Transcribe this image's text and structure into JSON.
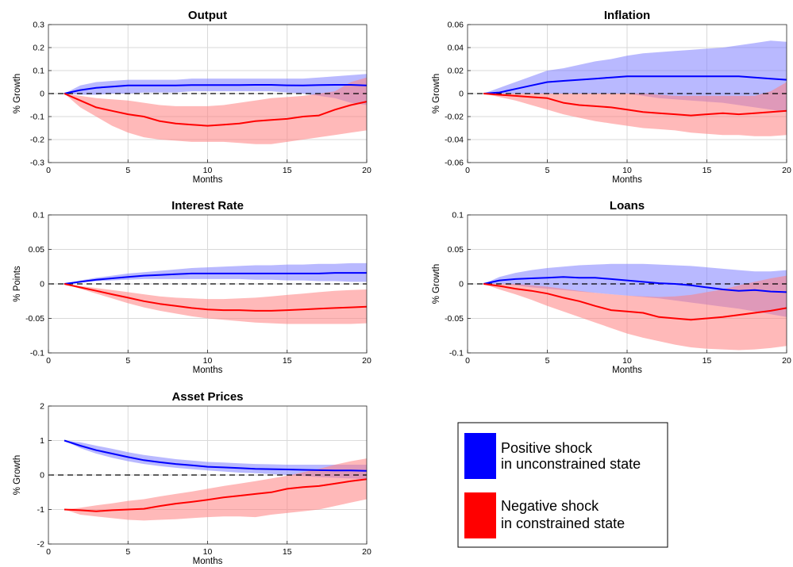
{
  "colors": {
    "positive_line": "#0000ff",
    "positive_band": "#8080ff",
    "negative_line": "#ff0000",
    "negative_band": "#ff8080",
    "zero_line": "#000000",
    "grid": "#d9d9d9"
  },
  "legend": {
    "placement": "bottom-right",
    "items": [
      {
        "line1": "Positive shock",
        "line2": "in unconstrained state",
        "color": "#0000ff"
      },
      {
        "line1": "Negative shock",
        "line2": "in constrained state",
        "color": "#ff0000"
      }
    ]
  },
  "chart_data": [
    {
      "type": "line",
      "title": "Output",
      "xlabel": "Months",
      "ylabel": "% Growth",
      "xlim": [
        0,
        20
      ],
      "ylim": [
        -0.3,
        0.3
      ],
      "xticks": [
        0,
        5,
        10,
        15,
        20
      ],
      "yticks": [
        -0.3,
        -0.2,
        -0.1,
        0,
        0.1,
        0.2,
        0.3
      ],
      "ytick_labels": [
        "-0.3",
        "-0.2",
        "-0.1",
        "0",
        "0.1",
        "0.2",
        "0.3"
      ],
      "grid": true,
      "x": [
        1,
        2,
        3,
        4,
        5,
        6,
        7,
        8,
        9,
        10,
        11,
        12,
        13,
        14,
        15,
        16,
        17,
        18,
        19,
        20
      ],
      "series": [
        {
          "kind": "positive",
          "values": [
            0,
            0.015,
            0.025,
            0.03,
            0.035,
            0.035,
            0.035,
            0.035,
            0.037,
            0.037,
            0.037,
            0.037,
            0.038,
            0.038,
            0.036,
            0.035,
            0.037,
            0.038,
            0.038,
            0.035
          ],
          "lower": [
            0,
            -0.005,
            -0.005,
            0,
            0,
            0.005,
            0.005,
            0.005,
            0.01,
            0.01,
            0.01,
            0.01,
            0.01,
            0.01,
            0.005,
            0.0,
            -0.01,
            -0.02,
            -0.04,
            -0.05
          ],
          "upper": [
            0,
            0.035,
            0.05,
            0.055,
            0.06,
            0.06,
            0.06,
            0.06,
            0.065,
            0.065,
            0.065,
            0.065,
            0.065,
            0.065,
            0.065,
            0.065,
            0.07,
            0.075,
            0.08,
            0.085
          ]
        },
        {
          "kind": "negative",
          "values": [
            0,
            -0.03,
            -0.06,
            -0.075,
            -0.09,
            -0.1,
            -0.12,
            -0.13,
            -0.135,
            -0.14,
            -0.135,
            -0.13,
            -0.12,
            -0.115,
            -0.11,
            -0.1,
            -0.095,
            -0.07,
            -0.05,
            -0.035
          ],
          "lower": [
            0,
            -0.06,
            -0.1,
            -0.14,
            -0.17,
            -0.19,
            -0.2,
            -0.205,
            -0.21,
            -0.21,
            -0.21,
            -0.215,
            -0.22,
            -0.22,
            -0.21,
            -0.2,
            -0.19,
            -0.18,
            -0.17,
            -0.16
          ],
          "upper": [
            0,
            -0.01,
            -0.02,
            -0.025,
            -0.03,
            -0.04,
            -0.05,
            -0.055,
            -0.055,
            -0.055,
            -0.05,
            -0.04,
            -0.03,
            -0.02,
            -0.015,
            -0.01,
            0.0,
            0.01,
            0.05,
            0.07
          ]
        }
      ]
    },
    {
      "type": "line",
      "title": "Inflation",
      "xlabel": "Months",
      "ylabel": "% Growth",
      "xlim": [
        0,
        20
      ],
      "ylim": [
        -0.06,
        0.06
      ],
      "xticks": [
        0,
        5,
        10,
        15,
        20
      ],
      "yticks": [
        -0.06,
        -0.04,
        -0.02,
        0,
        0.02,
        0.04,
        0.06
      ],
      "ytick_labels": [
        "-0.06",
        "-0.04",
        "-0.02",
        "0",
        "0.02",
        "0.04",
        "0.06"
      ],
      "grid": true,
      "x": [
        1,
        2,
        3,
        4,
        5,
        6,
        7,
        8,
        9,
        10,
        11,
        12,
        13,
        14,
        15,
        16,
        17,
        18,
        19,
        20
      ],
      "series": [
        {
          "kind": "positive",
          "values": [
            0,
            0.001,
            0.004,
            0.007,
            0.01,
            0.011,
            0.012,
            0.013,
            0.014,
            0.015,
            0.015,
            0.015,
            0.015,
            0.015,
            0.015,
            0.015,
            0.015,
            0.014,
            0.013,
            0.012
          ],
          "lower": [
            0,
            0,
            0,
            0,
            0,
            0,
            0,
            0,
            0,
            0,
            -0.002,
            -0.004,
            -0.005,
            -0.006,
            -0.007,
            -0.008,
            -0.01,
            -0.012,
            -0.014,
            -0.016
          ],
          "upper": [
            0,
            0.005,
            0.01,
            0.015,
            0.02,
            0.022,
            0.025,
            0.028,
            0.03,
            0.033,
            0.035,
            0.036,
            0.037,
            0.038,
            0.039,
            0.04,
            0.042,
            0.044,
            0.046,
            0.045
          ]
        },
        {
          "kind": "negative",
          "values": [
            0,
            -0.001,
            -0.002,
            -0.003,
            -0.004,
            -0.008,
            -0.01,
            -0.011,
            -0.012,
            -0.014,
            -0.016,
            -0.017,
            -0.018,
            -0.019,
            -0.018,
            -0.017,
            -0.018,
            -0.017,
            -0.016,
            -0.015
          ],
          "lower": [
            0,
            -0.003,
            -0.006,
            -0.01,
            -0.014,
            -0.018,
            -0.021,
            -0.024,
            -0.026,
            -0.028,
            -0.03,
            -0.031,
            -0.032,
            -0.034,
            -0.035,
            -0.036,
            -0.036,
            -0.037,
            -0.037,
            -0.036
          ],
          "upper": [
            0,
            0,
            0,
            0,
            0,
            0,
            0,
            0,
            0,
            0,
            0,
            -0.001,
            -0.002,
            -0.002,
            -0.002,
            -0.002,
            -0.002,
            -0.002,
            0.002,
            0.01
          ]
        }
      ]
    },
    {
      "type": "line",
      "title": "Interest Rate",
      "xlabel": "Months",
      "ylabel": "% Points",
      "xlim": [
        0,
        20
      ],
      "ylim": [
        -0.1,
        0.1
      ],
      "xticks": [
        0,
        5,
        10,
        15,
        20
      ],
      "yticks": [
        -0.1,
        -0.05,
        0,
        0.05,
        0.1
      ],
      "ytick_labels": [
        "-0.1",
        "-0.05",
        "0",
        "0.05",
        "0.1"
      ],
      "grid": true,
      "x": [
        1,
        2,
        3,
        4,
        5,
        6,
        7,
        8,
        9,
        10,
        11,
        12,
        13,
        14,
        15,
        16,
        17,
        18,
        19,
        20
      ],
      "series": [
        {
          "kind": "positive",
          "values": [
            0,
            0.003,
            0.006,
            0.008,
            0.01,
            0.012,
            0.013,
            0.014,
            0.015,
            0.015,
            0.015,
            0.015,
            0.015,
            0.015,
            0.015,
            0.015,
            0.015,
            0.016,
            0.016,
            0.016
          ],
          "lower": [
            0,
            0.002,
            0.004,
            0.005,
            0.006,
            0.007,
            0.007,
            0.007,
            0.007,
            0.007,
            0.007,
            0.007,
            0.006,
            0.006,
            0.005,
            0.005,
            0.004,
            0.004,
            0.003,
            0.003
          ],
          "upper": [
            0,
            0.005,
            0.009,
            0.012,
            0.015,
            0.017,
            0.019,
            0.021,
            0.023,
            0.024,
            0.025,
            0.026,
            0.027,
            0.027,
            0.028,
            0.028,
            0.029,
            0.029,
            0.03,
            0.03
          ]
        },
        {
          "kind": "negative",
          "values": [
            0,
            -0.005,
            -0.01,
            -0.015,
            -0.02,
            -0.025,
            -0.029,
            -0.032,
            -0.035,
            -0.037,
            -0.038,
            -0.038,
            -0.039,
            -0.039,
            -0.038,
            -0.037,
            -0.036,
            -0.035,
            -0.034,
            -0.033
          ],
          "lower": [
            0,
            -0.007,
            -0.014,
            -0.021,
            -0.028,
            -0.034,
            -0.039,
            -0.043,
            -0.047,
            -0.05,
            -0.052,
            -0.054,
            -0.056,
            -0.057,
            -0.058,
            -0.058,
            -0.058,
            -0.058,
            -0.058,
            -0.057
          ],
          "upper": [
            0,
            -0.003,
            -0.006,
            -0.009,
            -0.012,
            -0.015,
            -0.018,
            -0.02,
            -0.021,
            -0.022,
            -0.022,
            -0.021,
            -0.02,
            -0.018,
            -0.016,
            -0.014,
            -0.012,
            -0.01,
            -0.009,
            -0.008
          ]
        }
      ]
    },
    {
      "type": "line",
      "title": "Loans",
      "xlabel": "Months",
      "ylabel": "% Growth",
      "xlim": [
        0,
        20
      ],
      "ylim": [
        -0.1,
        0.1
      ],
      "xticks": [
        0,
        5,
        10,
        15,
        20
      ],
      "yticks": [
        -0.1,
        -0.05,
        0,
        0.05,
        0.1
      ],
      "ytick_labels": [
        "-0.1",
        "-0.05",
        "0",
        "0.05",
        "0.1"
      ],
      "grid": true,
      "x": [
        1,
        2,
        3,
        4,
        5,
        6,
        7,
        8,
        9,
        10,
        11,
        12,
        13,
        14,
        15,
        16,
        17,
        18,
        19,
        20
      ],
      "series": [
        {
          "kind": "positive",
          "values": [
            0,
            0.005,
            0.007,
            0.008,
            0.009,
            0.01,
            0.009,
            0.009,
            0.007,
            0.005,
            0.003,
            0.001,
            0,
            -0.002,
            -0.005,
            -0.008,
            -0.01,
            -0.009,
            -0.011,
            -0.012
          ],
          "lower": [
            0,
            0,
            -0.002,
            -0.005,
            -0.007,
            -0.009,
            -0.011,
            -0.013,
            -0.015,
            -0.017,
            -0.019,
            -0.021,
            -0.024,
            -0.027,
            -0.03,
            -0.033,
            -0.036,
            -0.04,
            -0.044,
            -0.048
          ],
          "upper": [
            0,
            0.01,
            0.016,
            0.02,
            0.023,
            0.025,
            0.027,
            0.028,
            0.029,
            0.029,
            0.029,
            0.028,
            0.027,
            0.026,
            0.024,
            0.022,
            0.02,
            0.018,
            0.018,
            0.02
          ]
        },
        {
          "kind": "negative",
          "values": [
            0,
            -0.003,
            -0.007,
            -0.01,
            -0.014,
            -0.02,
            -0.025,
            -0.032,
            -0.038,
            -0.04,
            -0.042,
            -0.048,
            -0.05,
            -0.052,
            -0.05,
            -0.048,
            -0.045,
            -0.042,
            -0.039,
            -0.035
          ],
          "lower": [
            0,
            -0.008,
            -0.015,
            -0.023,
            -0.032,
            -0.04,
            -0.048,
            -0.056,
            -0.064,
            -0.072,
            -0.078,
            -0.083,
            -0.088,
            -0.092,
            -0.094,
            -0.095,
            -0.096,
            -0.095,
            -0.093,
            -0.09
          ],
          "upper": [
            0,
            0,
            0,
            -0.002,
            -0.004,
            -0.007,
            -0.01,
            -0.013,
            -0.015,
            -0.017,
            -0.018,
            -0.019,
            -0.018,
            -0.016,
            -0.012,
            -0.008,
            -0.002,
            0.003,
            0.008,
            0.012
          ]
        }
      ]
    },
    {
      "type": "line",
      "title": "Asset Prices",
      "xlabel": "Months",
      "ylabel": "% Growth",
      "xlim": [
        0,
        20
      ],
      "ylim": [
        -2,
        2
      ],
      "xticks": [
        0,
        5,
        10,
        15,
        20
      ],
      "yticks": [
        -2,
        -1,
        0,
        1,
        2
      ],
      "ytick_labels": [
        "-2",
        "-1",
        "0",
        "1",
        "2"
      ],
      "grid": true,
      "x": [
        1,
        2,
        3,
        4,
        5,
        6,
        7,
        8,
        9,
        10,
        11,
        12,
        13,
        14,
        15,
        16,
        17,
        18,
        19,
        20
      ],
      "series": [
        {
          "kind": "positive",
          "values": [
            1,
            0.85,
            0.72,
            0.62,
            0.52,
            0.43,
            0.37,
            0.32,
            0.28,
            0.24,
            0.22,
            0.2,
            0.18,
            0.17,
            0.16,
            0.15,
            0.14,
            0.13,
            0.13,
            0.12
          ],
          "lower": [
            1,
            0.78,
            0.62,
            0.5,
            0.4,
            0.32,
            0.26,
            0.21,
            0.17,
            0.13,
            0.1,
            0.07,
            0.05,
            0.03,
            0.0,
            -0.03,
            -0.06,
            -0.08,
            -0.1,
            -0.12
          ],
          "upper": [
            1,
            0.95,
            0.85,
            0.76,
            0.66,
            0.58,
            0.52,
            0.46,
            0.42,
            0.38,
            0.36,
            0.34,
            0.32,
            0.31,
            0.3,
            0.3,
            0.3,
            0.3,
            0.3,
            0.3
          ]
        },
        {
          "kind": "negative",
          "values": [
            -1,
            -1.02,
            -1.05,
            -1.02,
            -1.0,
            -0.98,
            -0.9,
            -0.83,
            -0.78,
            -0.72,
            -0.65,
            -0.6,
            -0.55,
            -0.5,
            -0.4,
            -0.35,
            -0.32,
            -0.25,
            -0.18,
            -0.12
          ],
          "lower": [
            -1,
            -1.15,
            -1.2,
            -1.25,
            -1.3,
            -1.32,
            -1.3,
            -1.28,
            -1.25,
            -1.22,
            -1.2,
            -1.2,
            -1.22,
            -1.15,
            -1.1,
            -1.05,
            -1.0,
            -0.9,
            -0.8,
            -0.7
          ],
          "upper": [
            -1,
            -0.95,
            -0.88,
            -0.82,
            -0.75,
            -0.7,
            -0.62,
            -0.55,
            -0.48,
            -0.4,
            -0.32,
            -0.25,
            -0.18,
            -0.1,
            -0.02,
            0.08,
            0.18,
            0.3,
            0.4,
            0.48
          ]
        }
      ]
    }
  ]
}
